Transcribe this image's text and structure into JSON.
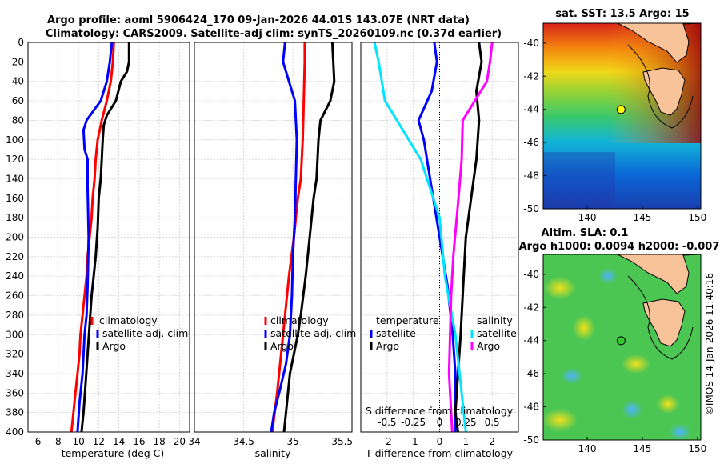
{
  "header": {
    "title_line1": "Argo profile: aoml 5906424_170 09-Jan-2026 44.01S 143.07E (NRT data)",
    "title_line2": "Climatology: CARS2009. Satellite-adj clim: synTS_20260109.nc (0.37d earlier)"
  },
  "colors": {
    "climatology": "#ff0000",
    "satellite": "#0000ff",
    "argo": "#000000",
    "sat_salinity": "#00e5ff",
    "argo_salinity": "#ff00ff"
  },
  "depth_axis": {
    "ticks": [
      "0",
      "20",
      "40",
      "60",
      "80",
      "100",
      "120",
      "140",
      "160",
      "180",
      "200",
      "220",
      "240",
      "260",
      "280",
      "300",
      "320",
      "340",
      "360",
      "380",
      "400"
    ]
  },
  "chart_data": [
    {
      "type": "line",
      "xlabel": "temperature (deg C)",
      "xlim": [
        5,
        21
      ],
      "ylim": [
        0,
        400
      ],
      "xticks": [
        "6",
        "8",
        "10",
        "12",
        "14",
        "16",
        "18",
        "20"
      ],
      "legend": [
        "climatology",
        "satellite-adj. clim",
        "Argo"
      ],
      "series": [
        {
          "name": "climatology",
          "color": "#ff0000",
          "points": [
            [
              13.5,
              0
            ],
            [
              13.4,
              20
            ],
            [
              13.2,
              40
            ],
            [
              12.8,
              60
            ],
            [
              12.3,
              80
            ],
            [
              11.9,
              100
            ],
            [
              11.7,
              120
            ],
            [
              11.6,
              140
            ],
            [
              11.4,
              160
            ],
            [
              11.3,
              180
            ],
            [
              11.1,
              200
            ],
            [
              10.9,
              220
            ],
            [
              10.8,
              240
            ],
            [
              10.6,
              260
            ],
            [
              10.4,
              280
            ],
            [
              10.2,
              300
            ],
            [
              10.1,
              320
            ],
            [
              9.9,
              340
            ],
            [
              9.7,
              360
            ],
            [
              9.5,
              380
            ],
            [
              9.3,
              400
            ]
          ]
        },
        {
          "name": "satellite-adj. clim",
          "color": "#0000ff",
          "points": [
            [
              13.3,
              0
            ],
            [
              13.1,
              20
            ],
            [
              12.8,
              40
            ],
            [
              12.2,
              60
            ],
            [
              10.8,
              80
            ],
            [
              10.5,
              90
            ],
            [
              10.6,
              110
            ],
            [
              10.9,
              120
            ],
            [
              10.9,
              150
            ],
            [
              11.0,
              200
            ],
            [
              10.9,
              250
            ],
            [
              10.8,
              280
            ],
            [
              10.6,
              300
            ],
            [
              10.4,
              340
            ],
            [
              10.1,
              370
            ],
            [
              9.9,
              400
            ]
          ]
        },
        {
          "name": "Argo",
          "color": "#000000",
          "points": [
            [
              15.0,
              0
            ],
            [
              15.0,
              20
            ],
            [
              14.8,
              30
            ],
            [
              14.2,
              40
            ],
            [
              13.7,
              60
            ],
            [
              12.8,
              75
            ],
            [
              12.5,
              85
            ],
            [
              12.4,
              100
            ],
            [
              12.3,
              120
            ],
            [
              12.2,
              140
            ],
            [
              12.0,
              160
            ],
            [
              11.9,
              190
            ],
            [
              11.7,
              220
            ],
            [
              11.5,
              240
            ],
            [
              11.3,
              260
            ],
            [
              11.1,
              290
            ],
            [
              10.9,
              320
            ],
            [
              10.7,
              350
            ],
            [
              10.5,
              380
            ],
            [
              10.3,
              400
            ]
          ]
        }
      ]
    },
    {
      "type": "line",
      "xlabel": "salinity",
      "xlim": [
        34,
        35.6
      ],
      "ylim": [
        0,
        400
      ],
      "xticks": [
        "34",
        "34.5",
        "35",
        "35.5"
      ],
      "legend": [
        "climatology",
        "satellite-adj. clim",
        "Argo"
      ],
      "series": [
        {
          "name": "climatology",
          "color": "#ff0000",
          "points": [
            [
              35.12,
              0
            ],
            [
              35.12,
              20
            ],
            [
              35.11,
              60
            ],
            [
              35.1,
              100
            ],
            [
              35.08,
              140
            ],
            [
              35.05,
              160
            ],
            [
              35.01,
              200
            ],
            [
              34.96,
              240
            ],
            [
              34.92,
              280
            ],
            [
              34.88,
              320
            ],
            [
              34.84,
              360
            ],
            [
              34.79,
              400
            ]
          ]
        },
        {
          "name": "satellite-adj. clim",
          "color": "#0000ff",
          "points": [
            [
              34.92,
              0
            ],
            [
              34.9,
              20
            ],
            [
              34.96,
              40
            ],
            [
              35.02,
              60
            ],
            [
              35.04,
              100
            ],
            [
              35.03,
              140
            ],
            [
              35.02,
              180
            ],
            [
              35.0,
              220
            ],
            [
              34.99,
              260
            ],
            [
              34.97,
              300
            ],
            [
              34.93,
              330
            ],
            [
              34.86,
              360
            ],
            [
              34.81,
              380
            ],
            [
              34.78,
              400
            ]
          ]
        },
        {
          "name": "Argo",
          "color": "#000000",
          "points": [
            [
              35.4,
              0
            ],
            [
              35.41,
              20
            ],
            [
              35.42,
              40
            ],
            [
              35.38,
              60
            ],
            [
              35.28,
              80
            ],
            [
              35.26,
              100
            ],
            [
              35.24,
              140
            ],
            [
              35.21,
              160
            ],
            [
              35.17,
              200
            ],
            [
              35.13,
              240
            ],
            [
              35.08,
              280
            ],
            [
              35.05,
              300
            ],
            [
              34.97,
              340
            ],
            [
              34.93,
              380
            ],
            [
              34.91,
              400
            ]
          ]
        }
      ]
    },
    {
      "type": "line",
      "xlabel": "T difference from climatology",
      "top_xlabel": "S difference from climatology",
      "xlim": [
        -3,
        3
      ],
      "ylim": [
        0,
        400
      ],
      "xticks": [
        "-2",
        "-1",
        "0",
        "1",
        "2"
      ],
      "top_xticks": [
        "-0.5",
        "-0.25",
        "0",
        "0.25",
        "0.5"
      ],
      "legend_temperature": {
        "title": "temperature",
        "items": [
          "satellite",
          "Argo"
        ]
      },
      "legend_salinity": {
        "title": "salinity",
        "items": [
          "satellite",
          "Argo"
        ]
      },
      "series": [
        {
          "name": "temperature satellite",
          "color": "#0000ff",
          "points": [
            [
              -0.2,
              0
            ],
            [
              -0.1,
              20
            ],
            [
              -0.3,
              50
            ],
            [
              -0.8,
              80
            ],
            [
              -0.6,
              100
            ],
            [
              -0.3,
              150
            ],
            [
              0.0,
              200
            ],
            [
              0.3,
              250
            ],
            [
              0.5,
              300
            ],
            [
              0.6,
              340
            ],
            [
              0.6,
              400
            ]
          ]
        },
        {
          "name": "temperature Argo",
          "color": "#000000",
          "points": [
            [
              1.5,
              0
            ],
            [
              1.6,
              20
            ],
            [
              1.4,
              50
            ],
            [
              1.5,
              80
            ],
            [
              1.4,
              120
            ],
            [
              1.0,
              200
            ],
            [
              0.9,
              250
            ],
            [
              0.8,
              300
            ],
            [
              0.7,
              340
            ],
            [
              0.6,
              380
            ],
            [
              0.7,
              400
            ]
          ]
        },
        {
          "name": "salinity satellite",
          "color": "#00e5ff",
          "points": [
            [
              -0.62,
              0
            ],
            [
              -0.58,
              20
            ],
            [
              -0.52,
              60
            ],
            [
              -0.18,
              120
            ],
            [
              0.0,
              180
            ],
            [
              0.05,
              240
            ],
            [
              0.15,
              300
            ],
            [
              0.2,
              350
            ],
            [
              0.25,
              400
            ]
          ]
        },
        {
          "name": "salinity Argo",
          "color": "#ff00ff",
          "points": [
            [
              0.5,
              0
            ],
            [
              0.48,
              20
            ],
            [
              0.45,
              40
            ],
            [
              0.22,
              80
            ],
            [
              0.21,
              120
            ],
            [
              0.18,
              160
            ],
            [
              0.13,
              220
            ],
            [
              0.11,
              260
            ],
            [
              0.1,
              300
            ],
            [
              0.09,
              340
            ],
            [
              0.12,
              400
            ]
          ]
        }
      ]
    },
    {
      "type": "heatmap",
      "title": "sat. SST: 13.5 Argo: 15",
      "xticks": [
        "140",
        "145",
        "150"
      ],
      "yticks": [
        "-40",
        "-42",
        "-44",
        "-46",
        "-48",
        "-50"
      ],
      "xlim": [
        136,
        150.3
      ],
      "ylim": [
        -50,
        -38.8
      ],
      "marker": {
        "lon": 143.07,
        "lat": -44.01,
        "color": "#ffff00"
      }
    },
    {
      "type": "heatmap",
      "title": "Altim. SLA: 0.1",
      "subtitle": "Argo h1000: 0.0094 h2000: -0.007",
      "xticks": [
        "140",
        "145",
        "150"
      ],
      "yticks": [
        "-40",
        "-42",
        "-44",
        "-46",
        "-48",
        "-50"
      ],
      "xlim": [
        136,
        150.3
      ],
      "ylim": [
        -50,
        -38.8
      ],
      "marker": {
        "lon": 143.07,
        "lat": -44.01,
        "color": "#33cc33"
      }
    }
  ],
  "watermark": "©IMOS 14-Jan-2026 11:40:16"
}
